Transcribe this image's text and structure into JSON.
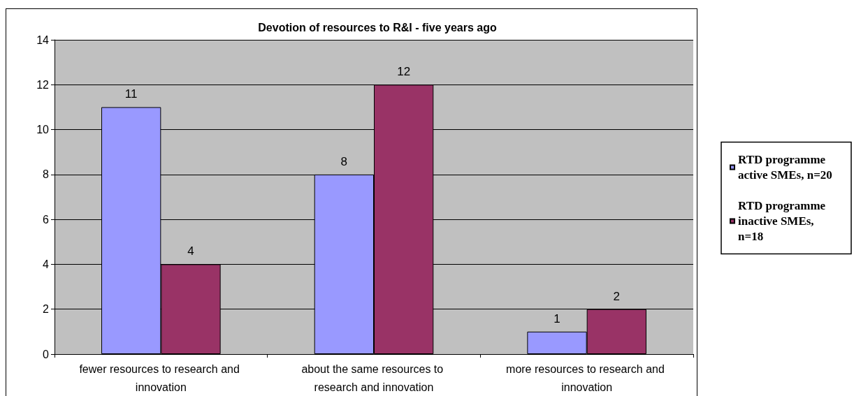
{
  "chart_data": {
    "type": "bar",
    "title": "Devotion of resources to R&I - five years ago",
    "categories": [
      "fewer resources to research and innovation",
      "about the same resources to research and innovation",
      "more resources to research and innovation"
    ],
    "series": [
      {
        "name": "RTD programme active SMEs, n=20",
        "color": "#9999ff",
        "values": [
          11,
          8,
          1
        ]
      },
      {
        "name": "RTD programme inactive SMEs, n=18",
        "color": "#993366",
        "values": [
          4,
          12,
          2
        ]
      }
    ],
    "ylim": [
      0,
      14
    ],
    "yticks": [
      0,
      2,
      4,
      6,
      8,
      10,
      12,
      14
    ],
    "grid": "y",
    "legend": "right",
    "data_labels": true
  }
}
